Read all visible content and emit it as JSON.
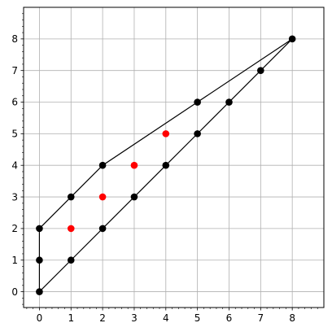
{
  "chart_data": {
    "type": "scatter",
    "title": "",
    "xlabel": "",
    "ylabel": "",
    "xlim": [
      -0.5,
      9.0
    ],
    "ylim": [
      -0.5,
      9.0
    ],
    "xticks": [
      "0",
      "1",
      "2",
      "3",
      "4",
      "5",
      "6",
      "7",
      "8"
    ],
    "yticks": [
      "0",
      "1",
      "2",
      "3",
      "4",
      "5",
      "6",
      "7",
      "8"
    ],
    "grid": true,
    "minor_ticks": true,
    "aspect": "equal",
    "polygon": {
      "color": "#000000",
      "vertices": [
        [
          0,
          0
        ],
        [
          1,
          1
        ],
        [
          2,
          2
        ],
        [
          3,
          3
        ],
        [
          4,
          4
        ],
        [
          5,
          5
        ],
        [
          6,
          6
        ],
        [
          7,
          7
        ],
        [
          8,
          8
        ],
        [
          5,
          6
        ],
        [
          2,
          4
        ],
        [
          1,
          3
        ],
        [
          0,
          2
        ],
        [
          0,
          1
        ],
        [
          0,
          0
        ]
      ]
    },
    "series": [
      {
        "color": "#000000",
        "points": [
          [
            0,
            0
          ],
          [
            0,
            1
          ],
          [
            0,
            2
          ],
          [
            1,
            1
          ],
          [
            1,
            3
          ],
          [
            2,
            2
          ],
          [
            2,
            4
          ],
          [
            3,
            3
          ],
          [
            4,
            4
          ],
          [
            5,
            5
          ],
          [
            5,
            6
          ],
          [
            6,
            6
          ],
          [
            7,
            7
          ],
          [
            8,
            8
          ]
        ]
      },
      {
        "color": "#ff0000",
        "points": [
          [
            1,
            2
          ],
          [
            2,
            3
          ],
          [
            3,
            4
          ],
          [
            4,
            5
          ]
        ]
      }
    ]
  }
}
